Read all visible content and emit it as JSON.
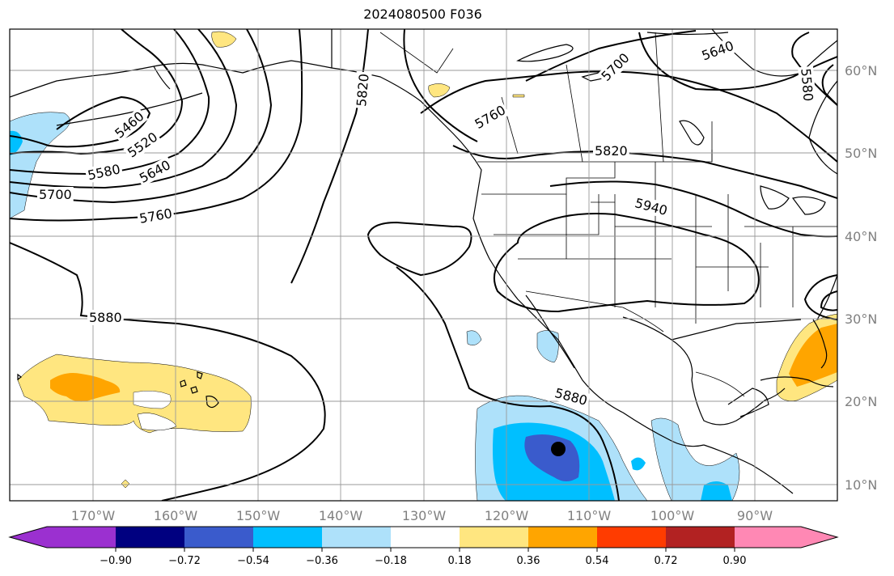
{
  "title": "2024080500 F036",
  "map": {
    "projection": "PlateCarree",
    "extent": {
      "lon_min": 180,
      "lon_max": 280,
      "lat_min": 8,
      "lat_max": 65
    },
    "longitude_labels": [
      "170°W",
      "160°W",
      "150°W",
      "140°W",
      "130°W",
      "120°W",
      "110°W",
      "100°W",
      "90°W"
    ],
    "latitude_labels": [
      "60°N",
      "50°N",
      "40°N",
      "30°N",
      "20°N",
      "10°N"
    ],
    "gridlines": true,
    "contour_labels": [
      "5460",
      "5520",
      "5580",
      "5640",
      "5700",
      "5760",
      "5820",
      "5880",
      "5940",
      "5760",
      "5700",
      "5640",
      "5580",
      "5820",
      "5880"
    ],
    "marker": "storm-center-marker"
  },
  "colorbar": {
    "tick_labels": [
      "−0.90",
      "−0.72",
      "−0.54",
      "−0.36",
      "−0.18",
      "0.18",
      "0.36",
      "0.54",
      "0.72",
      "0.90"
    ],
    "colors": [
      "#9b30d0",
      "#000080",
      "#3a5bcc",
      "#00bfff",
      "#aee1fa",
      "#ffffff",
      "#ffe680",
      "#ffa500",
      "#ff3c00",
      "#b22222",
      "#ff88b4"
    ]
  }
}
